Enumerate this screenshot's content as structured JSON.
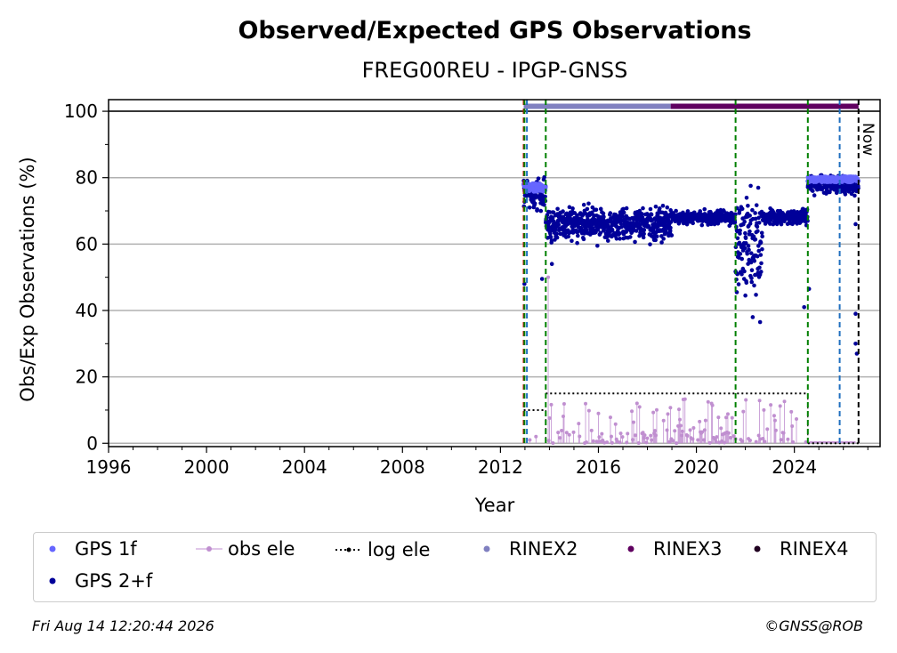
{
  "chart_data": {
    "type": "scatter",
    "title": "Observed/Expected GPS Observations",
    "subtitle": "FREG00REU - IPGP-GNSS",
    "xlabel": "Year",
    "ylabel": "Obs/Exp Observations (%)",
    "xlim": [
      1996,
      2027.5
    ],
    "ylim": [
      -1,
      103.5
    ],
    "xticks": [
      "1996",
      "2000",
      "2004",
      "2008",
      "2012",
      "2016",
      "2020",
      "2024"
    ],
    "xtick_values": [
      1996,
      2000,
      2004,
      2008,
      2012,
      2016,
      2020,
      2024
    ],
    "yticks": [
      "0",
      "20",
      "40",
      "60",
      "80",
      "100"
    ],
    "ytick_values": [
      0,
      20,
      40,
      60,
      80,
      100
    ],
    "grid": "horizontal",
    "legend_position": "below",
    "now_label": "Now",
    "now_year": 2026.62,
    "reference_line_y": 100,
    "vertical_lines": [
      {
        "x": 2012.95,
        "color": "#cc0000"
      },
      {
        "x": 2012.98,
        "color": "#008000"
      },
      {
        "x": 2013.08,
        "color": "#1f6fbf"
      },
      {
        "x": 2013.85,
        "color": "#008000"
      },
      {
        "x": 2021.6,
        "color": "#008000"
      },
      {
        "x": 2024.55,
        "color": "#008000"
      },
      {
        "x": 2025.85,
        "color": "#1f6fbf"
      },
      {
        "x": 2026.62,
        "color": "#000000"
      }
    ],
    "rinex_bars": [
      {
        "format": "RINEX2",
        "start": 2012.95,
        "end": 2018.95,
        "color": "#8080c0"
      },
      {
        "format": "RINEX3",
        "start": 2018.95,
        "end": 2026.62,
        "color": "#600060"
      }
    ],
    "log_ele": [
      {
        "start": 2012.95,
        "end": 2013.85,
        "value": 10
      },
      {
        "start": 2013.85,
        "end": 2024.55,
        "value": 15
      },
      {
        "start": 2024.55,
        "end": 2026.62,
        "value": 0
      }
    ],
    "gps2f_segments": [
      {
        "start": 2012.95,
        "end": 2013.85,
        "center": 75,
        "spread": 3
      },
      {
        "start": 2013.85,
        "end": 2019.0,
        "center": 66,
        "spread": 3.5
      },
      {
        "start": 2019.0,
        "end": 2021.6,
        "center": 68,
        "spread": 1.5
      },
      {
        "start": 2021.6,
        "end": 2022.7,
        "center": 60,
        "spread": 10
      },
      {
        "start": 2022.7,
        "end": 2024.55,
        "center": 68,
        "spread": 1.5
      },
      {
        "start": 2024.55,
        "end": 2026.62,
        "center": 78,
        "spread": 2
      }
    ],
    "gps1f_segments": [
      {
        "start": 2012.95,
        "end": 2013.85,
        "center": 77,
        "spread": 1.2
      },
      {
        "start": 2024.55,
        "end": 2026.62,
        "center": 79.5,
        "spread": 0.8
      }
    ],
    "outliers": [
      {
        "x": 2012.98,
        "y": 48
      },
      {
        "x": 2013.7,
        "y": 49.5
      },
      {
        "x": 2014.1,
        "y": 54
      },
      {
        "x": 2021.65,
        "y": 45.5
      },
      {
        "x": 2022.0,
        "y": 44.5
      },
      {
        "x": 2022.3,
        "y": 38
      },
      {
        "x": 2022.6,
        "y": 36.5
      },
      {
        "x": 2024.4,
        "y": 41
      },
      {
        "x": 2024.6,
        "y": 46.5
      },
      {
        "x": 2026.5,
        "y": 39
      },
      {
        "x": 2026.5,
        "y": 30
      },
      {
        "x": 2026.55,
        "y": 27
      },
      {
        "x": 2026.5,
        "y": 66
      }
    ],
    "series": [
      {
        "name": "GPS 1f",
        "color": "#6666ff"
      },
      {
        "name": "GPS 2+f",
        "color": "#000099"
      },
      {
        "name": "obs ele",
        "color": "#c08fd0"
      },
      {
        "name": "log ele",
        "color": "#000000"
      },
      {
        "name": "RINEX2",
        "color": "#8080c0"
      },
      {
        "name": "RINEX3",
        "color": "#600060"
      },
      {
        "name": "RINEX4",
        "color": "#200020"
      }
    ]
  },
  "legend": [
    {
      "label": "GPS 1f",
      "kind": "dot",
      "color": "#6666ff"
    },
    {
      "label": "obs ele",
      "kind": "line-dot",
      "color": "#c08fd0"
    },
    {
      "label": "log ele",
      "kind": "dotted",
      "color": "#000000"
    },
    {
      "label": "RINEX2",
      "kind": "dot",
      "color": "#8080c0"
    },
    {
      "label": "RINEX3",
      "kind": "dot",
      "color": "#600060"
    },
    {
      "label": "RINEX4",
      "kind": "dot",
      "color": "#200020"
    },
    {
      "label": "GPS 2+f",
      "kind": "dot",
      "color": "#000099"
    }
  ],
  "footer": {
    "timestamp": "Fri Aug 14 12:20:44 2026",
    "credit": "©GNSS@ROB"
  }
}
